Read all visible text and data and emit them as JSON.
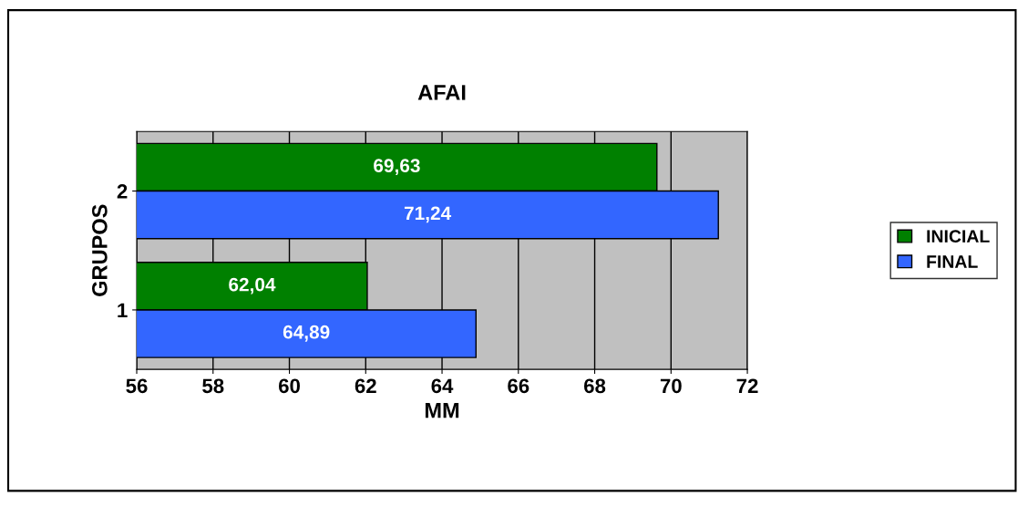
{
  "chart_data": {
    "type": "bar",
    "orientation": "horizontal",
    "title": "AFAI",
    "xlabel": "MM",
    "ylabel": "GRUPOS",
    "categories": [
      "2",
      "1"
    ],
    "series": [
      {
        "name": "INICIAL",
        "color": "#008000",
        "values": [
          69.63,
          62.04
        ],
        "value_labels": [
          "69,63",
          "62,04"
        ]
      },
      {
        "name": "FINAL",
        "color": "#3366ff",
        "values": [
          71.24,
          64.89
        ],
        "value_labels": [
          "71,24",
          "64,89"
        ]
      }
    ],
    "xlim": [
      56,
      72
    ],
    "xticks": [
      56,
      58,
      60,
      62,
      64,
      66,
      68,
      70,
      72
    ],
    "grid": "x",
    "legend": "right"
  }
}
